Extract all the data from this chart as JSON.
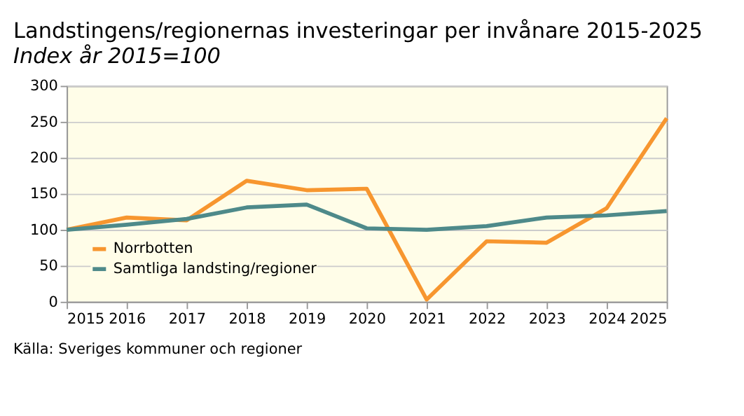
{
  "chart_data": {
    "type": "line",
    "title": "Landstingens/regionernas investeringar per invånare 2015-2025",
    "subtitle": "Index år 2015=100",
    "x": [
      2015,
      2016,
      2017,
      2018,
      2019,
      2020,
      2021,
      2022,
      2023,
      2024,
      2025
    ],
    "series": [
      {
        "name": "Norrbotten",
        "color": "#f7962f",
        "values": [
          100,
          117,
          113,
          168,
          155,
          157,
          3,
          84,
          82,
          130,
          255
        ]
      },
      {
        "name": "Samtliga landsting/regioner",
        "color": "#4e8a8a",
        "values": [
          100,
          107,
          115,
          131,
          135,
          102,
          100,
          105,
          117,
          120,
          126
        ]
      }
    ],
    "xlim": [
      2015,
      2025
    ],
    "xticks": [
      2015,
      2016,
      2017,
      2018,
      2019,
      2020,
      2021,
      2022,
      2023,
      2024,
      2025
    ],
    "ylim": [
      0,
      300
    ],
    "yticks": [
      0,
      50,
      100,
      150,
      200,
      250,
      300
    ],
    "grid": "y",
    "legend": "bottom left",
    "marker": "none",
    "line_style": "solid",
    "annotations": [
      "Källa: Sveriges kommuner och regioner"
    ]
  }
}
